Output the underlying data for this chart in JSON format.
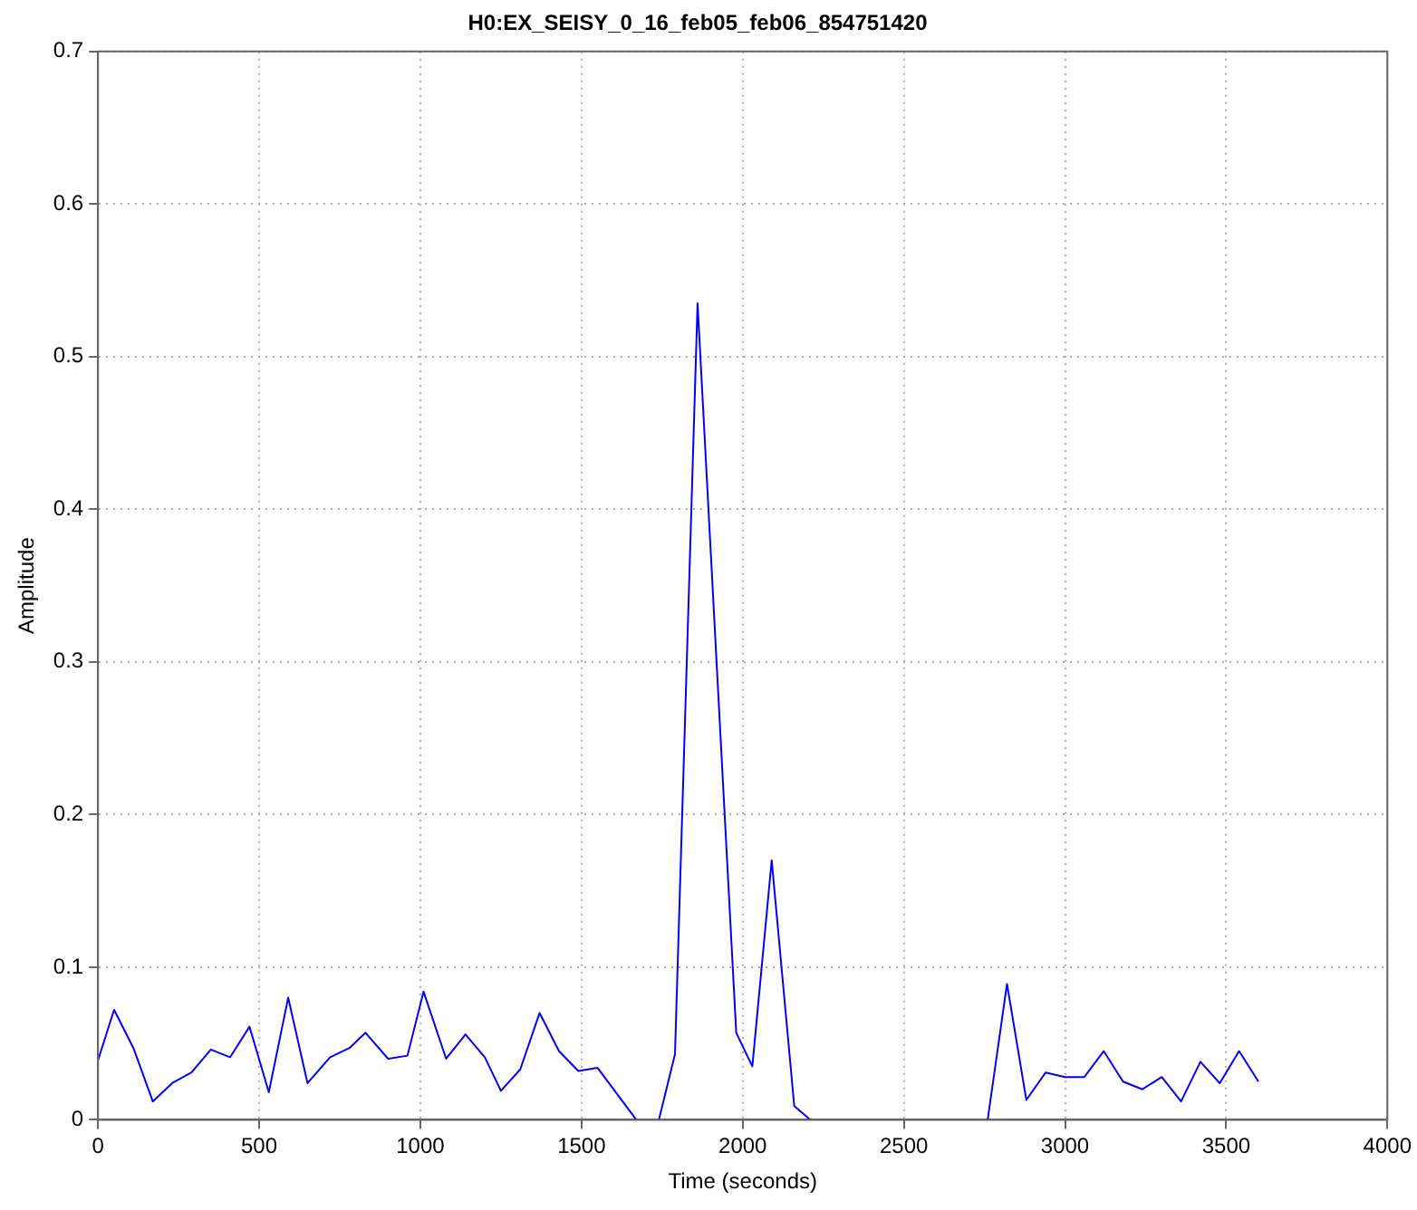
{
  "chart_data": {
    "type": "line",
    "title": "H0:EX_SEISY_0_16_feb05_feb06_854751420",
    "xlabel": "Time (seconds)",
    "ylabel": "Amplitude",
    "x": [
      0,
      50,
      110,
      170,
      230,
      290,
      350,
      410,
      470,
      530,
      590,
      650,
      720,
      780,
      830,
      900,
      960,
      1010,
      1080,
      1140,
      1200,
      1250,
      1310,
      1370,
      1430,
      1490,
      1550,
      1670,
      1700,
      1740,
      1790,
      1860,
      1980,
      2030,
      2090,
      2160,
      2210,
      2480,
      2760,
      2820,
      2880,
      2940,
      3000,
      3060,
      3120,
      3180,
      3240,
      3300,
      3360,
      3420,
      3480,
      3540,
      3600
    ],
    "series": [
      {
        "color": "#0000ff",
        "values": [
          0.039,
          0.072,
          0.047,
          0.012,
          0.024,
          0.031,
          0.046,
          0.041,
          0.061,
          0.018,
          0.08,
          0.024,
          0.041,
          0.047,
          0.057,
          0.04,
          0.042,
          0.084,
          0.04,
          0.056,
          0.041,
          0.019,
          0.033,
          0.07,
          0.045,
          0.032,
          0.034,
          0,
          null,
          0,
          0.043,
          0.535,
          0.057,
          0.035,
          0.17,
          0.009,
          0,
          null,
          0,
          0.089,
          0.013,
          0.031,
          0.028,
          0.028,
          0.045,
          0.025,
          0.02,
          0.028,
          0.012,
          0.038,
          0.024,
          0.045,
          0.025
        ]
      }
    ],
    "xlim": [
      0,
      4000
    ],
    "xticks": [
      0,
      500,
      1000,
      1500,
      2000,
      2500,
      3000,
      3500,
      4000
    ],
    "ylim": [
      0,
      0.7
    ],
    "yticks": [
      0,
      0.1,
      0.2,
      0.3,
      0.4,
      0.5,
      0.6,
      0.7
    ],
    "grid": true,
    "legend": false,
    "marker": "none",
    "line_style": "solid"
  }
}
